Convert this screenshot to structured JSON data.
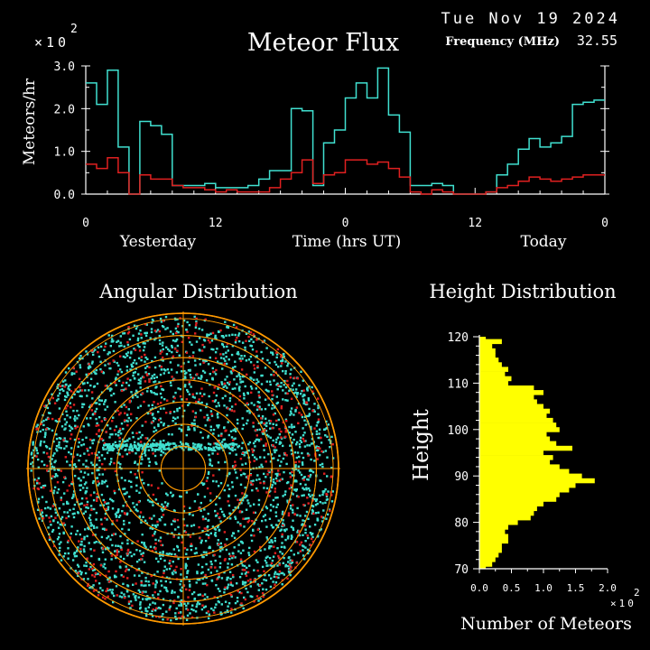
{
  "header": {
    "date": "Tue Nov 19 2024",
    "title": "Meteor Flux",
    "freq_label": "Frequency (MHz)",
    "freq_value": "32.55"
  },
  "colors": {
    "cyan": "#40e0d0",
    "red": "#e02020",
    "yellow": "#ffff00",
    "orange": "#ff9900",
    "axis": "#ffffff"
  },
  "chart_data": [
    {
      "type": "line",
      "title": "Meteor Flux",
      "ylabel": "Meteors/hr",
      "y_multiplier": "×10",
      "y_multiplier_exp": "2",
      "xlabel": "Time (hrs UT)",
      "day_labels": [
        "Yesterday",
        "Today"
      ],
      "x_ticks": [
        "0",
        "12",
        "0",
        "12",
        "0"
      ],
      "x_range_hours": [
        0,
        48
      ],
      "ylim": [
        0,
        3.0
      ],
      "y_ticks": [
        "0.0",
        "1.0",
        "2.0",
        "3.0"
      ],
      "step": true,
      "series": [
        {
          "color": "cyan",
          "values": [
            2.6,
            2.1,
            2.9,
            1.1,
            0.0,
            1.7,
            1.6,
            1.4,
            0.2,
            0.2,
            0.2,
            0.25,
            0.15,
            0.15,
            0.15,
            0.2,
            0.35,
            0.55,
            0.55,
            2.0,
            1.95,
            0.2,
            1.2,
            1.5,
            2.25,
            2.6,
            2.25,
            2.95,
            1.85,
            1.45,
            0.2,
            0.2,
            0.25,
            0.2,
            0.0,
            0.0,
            0.0,
            0.05,
            0.45,
            0.7,
            1.05,
            1.3,
            1.1,
            1.2,
            1.35,
            2.1,
            2.15,
            2.2
          ]
        },
        {
          "color": "red",
          "values": [
            0.7,
            0.6,
            0.85,
            0.5,
            0.0,
            0.45,
            0.35,
            0.35,
            0.2,
            0.15,
            0.15,
            0.1,
            0.05,
            0.1,
            0.05,
            0.05,
            0.05,
            0.15,
            0.35,
            0.5,
            0.8,
            0.25,
            0.45,
            0.5,
            0.8,
            0.8,
            0.7,
            0.75,
            0.6,
            0.4,
            0.05,
            0.0,
            0.1,
            0.05,
            0.0,
            0.0,
            0.0,
            0.05,
            0.15,
            0.2,
            0.3,
            0.4,
            0.35,
            0.3,
            0.35,
            0.4,
            0.45,
            0.45
          ]
        }
      ]
    },
    {
      "type": "scatter",
      "title": "Angular Distribution",
      "shape": "polar",
      "series": [
        {
          "color": "cyan",
          "name": ""
        },
        {
          "color": "red",
          "name": ""
        }
      ]
    },
    {
      "type": "bar",
      "orientation": "horizontal",
      "title": "Height Distribution",
      "ylabel": "Height",
      "xlabel": "Number of Meteors",
      "x_multiplier": "×10",
      "x_multiplier_exp": "2",
      "xlim": [
        0,
        2.0
      ],
      "x_ticks": [
        "0.0",
        "0.5",
        "1.0",
        "1.5",
        "2.0"
      ],
      "ylim": [
        70,
        120
      ],
      "y_ticks": [
        "70",
        "80",
        "90",
        "100",
        "110",
        "120"
      ],
      "bar_color": "yellow",
      "heights": [
        120,
        119,
        118,
        117,
        116,
        115,
        114,
        113,
        112,
        111,
        110,
        109,
        108,
        107,
        106,
        105,
        104,
        103,
        102,
        101,
        100,
        99,
        98,
        97,
        96,
        95,
        94,
        93,
        92,
        91,
        90,
        89,
        88,
        87,
        86,
        85,
        84,
        83,
        82,
        81,
        80,
        79,
        78,
        77,
        76,
        75,
        74,
        73,
        72,
        71,
        70
      ],
      "values": [
        0.1,
        0.35,
        0.2,
        0.25,
        0.25,
        0.3,
        0.35,
        0.45,
        0.4,
        0.5,
        0.45,
        0.85,
        1.0,
        0.85,
        0.9,
        1.0,
        1.1,
        1.05,
        1.15,
        1.2,
        1.25,
        1.05,
        1.1,
        1.2,
        1.45,
        1.0,
        1.15,
        1.1,
        1.25,
        1.4,
        1.6,
        1.8,
        1.5,
        1.4,
        1.25,
        1.2,
        1.0,
        0.9,
        0.85,
        0.8,
        0.6,
        0.45,
        0.4,
        0.45,
        0.45,
        0.35,
        0.35,
        0.3,
        0.25,
        0.2,
        0.1
      ]
    }
  ]
}
